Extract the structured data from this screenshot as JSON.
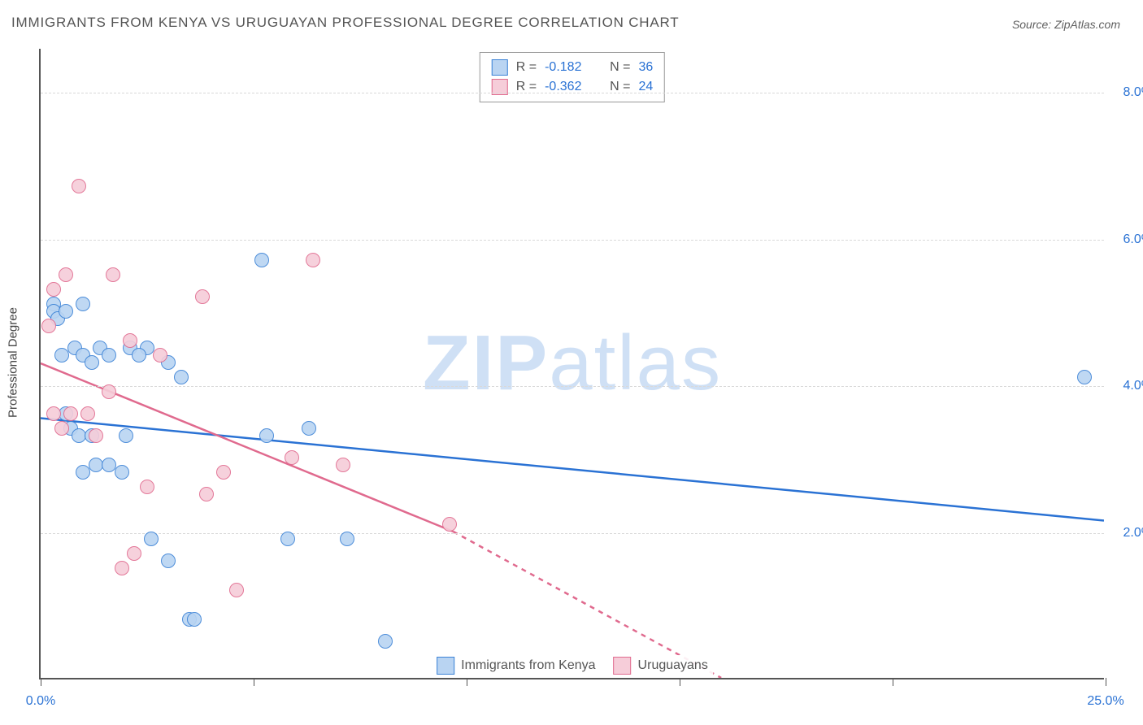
{
  "title": "IMMIGRANTS FROM KENYA VS URUGUAYAN PROFESSIONAL DEGREE CORRELATION CHART",
  "source": "Source: ZipAtlas.com",
  "y_axis_label": "Professional Degree",
  "watermark": {
    "bold": "ZIP",
    "light": "atlas",
    "color": "#cfe0f5"
  },
  "chart": {
    "type": "scatter",
    "xlim": [
      0,
      25
    ],
    "ylim": [
      0,
      8.6
    ],
    "x_ticks": [
      0,
      5,
      10,
      15,
      20,
      25
    ],
    "x_tick_labels": [
      "0.0%",
      "",
      "",
      "",
      "",
      "25.0%"
    ],
    "y_ticks": [
      2,
      4,
      6,
      8
    ],
    "y_tick_labels": [
      "2.0%",
      "4.0%",
      "6.0%",
      "8.0%"
    ],
    "grid_color": "#d9d9d9",
    "background_color": "#ffffff",
    "marker_size": 18,
    "marker_opacity": 0.9,
    "trend_line_width": 2.5,
    "stats": [
      {
        "swatch_fill": "#b9d4f2",
        "swatch_stroke": "#3b82d6",
        "R": "-0.182",
        "N": "36"
      },
      {
        "swatch_fill": "#f6cdd9",
        "swatch_stroke": "#e06a8e",
        "R": "-0.362",
        "N": "24"
      }
    ],
    "legend": [
      {
        "swatch_fill": "#b9d4f2",
        "swatch_stroke": "#3b82d6",
        "label": "Immigrants from Kenya"
      },
      {
        "swatch_fill": "#f6cdd9",
        "swatch_stroke": "#e06a8e",
        "label": "Uruguayans"
      }
    ],
    "series": [
      {
        "name": "Immigrants from Kenya",
        "fill": "#b9d4f2",
        "stroke": "#3b82d6",
        "trend": {
          "x1": 0,
          "y1": 3.55,
          "x2": 25,
          "y2": 2.15,
          "dash_after_x": 25,
          "color": "#2a72d4"
        },
        "points": [
          [
            0.3,
            5.1
          ],
          [
            0.3,
            5.0
          ],
          [
            0.4,
            4.9
          ],
          [
            0.5,
            4.4
          ],
          [
            0.6,
            5.0
          ],
          [
            0.8,
            4.5
          ],
          [
            0.7,
            3.4
          ],
          [
            0.9,
            3.3
          ],
          [
            1.0,
            4.4
          ],
          [
            1.2,
            3.3
          ],
          [
            1.4,
            4.5
          ],
          [
            1.6,
            4.4
          ],
          [
            1.3,
            2.9
          ],
          [
            1.6,
            2.9
          ],
          [
            2.1,
            4.5
          ],
          [
            2.5,
            4.5
          ],
          [
            3.0,
            4.3
          ],
          [
            2.0,
            3.3
          ],
          [
            2.6,
            1.9
          ],
          [
            3.0,
            1.6
          ],
          [
            3.3,
            4.1
          ],
          [
            3.5,
            0.8
          ],
          [
            3.6,
            0.8
          ],
          [
            5.2,
            5.7
          ],
          [
            5.3,
            3.3
          ],
          [
            5.8,
            1.9
          ],
          [
            6.3,
            3.4
          ],
          [
            7.2,
            1.9
          ],
          [
            8.1,
            0.5
          ],
          [
            1.0,
            2.8
          ],
          [
            0.6,
            3.6
          ],
          [
            1.2,
            4.3
          ],
          [
            2.3,
            4.4
          ],
          [
            1.9,
            2.8
          ],
          [
            24.5,
            4.1
          ],
          [
            1.0,
            5.1
          ]
        ]
      },
      {
        "name": "Uruguayans",
        "fill": "#f6cdd9",
        "stroke": "#e06a8e",
        "trend": {
          "x1": 0,
          "y1": 4.3,
          "x2": 9.7,
          "y2": 2.0,
          "dash_after_x": 9.7,
          "dash_x2": 16.0,
          "dash_y2": 0.0,
          "color": "#e06a8e"
        },
        "points": [
          [
            0.2,
            4.8
          ],
          [
            0.3,
            5.3
          ],
          [
            0.3,
            3.6
          ],
          [
            0.6,
            5.5
          ],
          [
            0.9,
            6.7
          ],
          [
            1.1,
            3.6
          ],
          [
            1.3,
            3.3
          ],
          [
            1.6,
            3.9
          ],
          [
            1.7,
            5.5
          ],
          [
            2.1,
            4.6
          ],
          [
            1.9,
            1.5
          ],
          [
            2.2,
            1.7
          ],
          [
            2.5,
            2.6
          ],
          [
            2.8,
            4.4
          ],
          [
            3.8,
            5.2
          ],
          [
            3.9,
            2.5
          ],
          [
            4.3,
            2.8
          ],
          [
            4.6,
            1.2
          ],
          [
            5.9,
            3.0
          ],
          [
            6.4,
            5.7
          ],
          [
            7.1,
            2.9
          ],
          [
            9.6,
            2.1
          ],
          [
            0.7,
            3.6
          ],
          [
            0.5,
            3.4
          ]
        ]
      }
    ]
  }
}
